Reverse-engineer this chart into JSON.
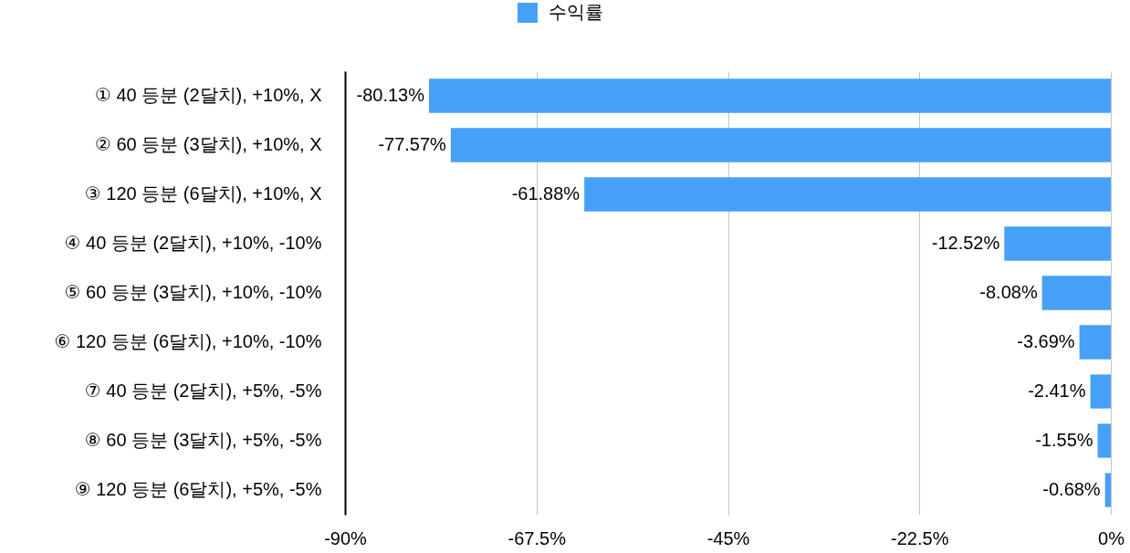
{
  "chart_data": {
    "type": "bar",
    "orientation": "horizontal",
    "categories": [
      "① 40 등분 (2달치), +10%, X",
      "② 60 등분 (3달치), +10%, X",
      "③ 120 등분 (6달치), +10%, X",
      "④ 40 등분 (2달치), +10%, -10%",
      "⑤ 60 등분 (3달치), +10%, -10%",
      "⑥ 120 등분 (6달치), +10%, -10%",
      "⑦ 40 등분 (2달치), +5%, -5%",
      "⑧ 60 등분 (3달치), +5%, -5%",
      "⑨ 120 등분 (6달치), +5%, -5%"
    ],
    "series": [
      {
        "name": "수익률",
        "color": "#47a0f7",
        "values": [
          -80.13,
          -77.57,
          -61.88,
          -12.52,
          -8.08,
          -3.69,
          -2.41,
          -1.55,
          -0.68
        ],
        "value_labels": [
          "-80.13%",
          "-77.57%",
          "-61.88%",
          "-12.52%",
          "-8.08%",
          "-3.69%",
          "-2.41%",
          "-1.55%",
          "-0.68%"
        ]
      }
    ],
    "xlim": [
      -90,
      0
    ],
    "xticks": [
      {
        "value": -90,
        "label": "-90%"
      },
      {
        "value": -67.5,
        "label": "-67.5%"
      },
      {
        "value": -45,
        "label": "-45%"
      },
      {
        "value": -22.5,
        "label": "-22.5%"
      },
      {
        "value": 0,
        "label": "0%"
      }
    ],
    "grid": "x",
    "legend": "top"
  }
}
